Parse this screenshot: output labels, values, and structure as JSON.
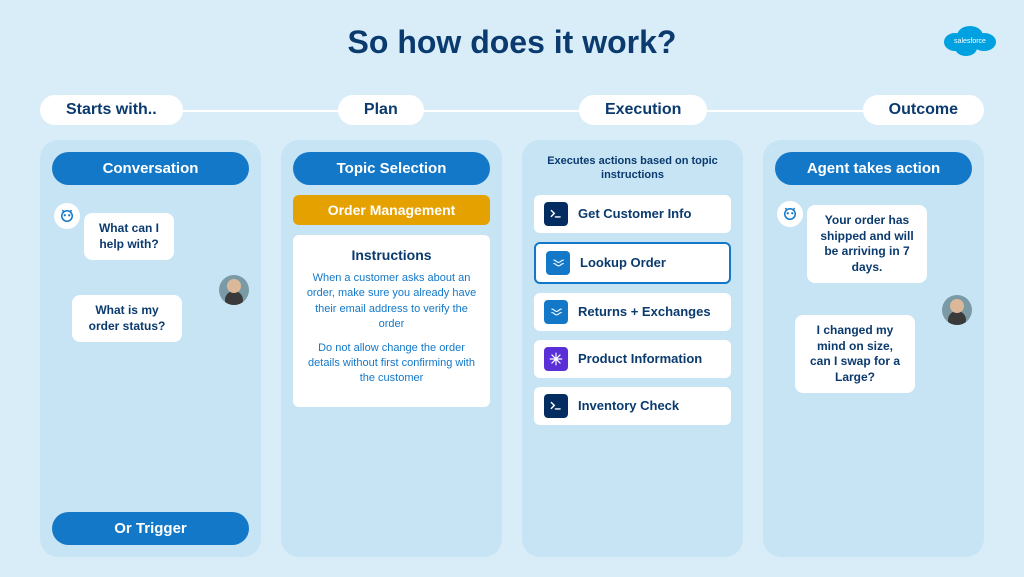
{
  "title": "So how does it work?",
  "logo_label": "salesforce",
  "colors": {
    "page_bg": "#d9edf9",
    "col_bg": "#c7e4f5",
    "primary": "#1478c8",
    "dark": "#0a3a6e",
    "amber": "#e5a100",
    "white": "#ffffff",
    "icon_terminal": "#032d60",
    "icon_flow": "#1478c8",
    "icon_star": "#5a2fd8"
  },
  "stages": [
    "Starts with..",
    "Plan",
    "Execution",
    "Outcome"
  ],
  "col1": {
    "header": "Conversation",
    "bot_msg": "What can I help with?",
    "user_msg": "What is my order status?",
    "footer": "Or Trigger"
  },
  "col2": {
    "header": "Topic Selection",
    "topic": "Order Management",
    "instructions_title": "Instructions",
    "instruction1": "When a customer asks about an order, make sure you already have their email address to verify the order",
    "instruction2": "Do not allow change the order details without first confirming with the customer"
  },
  "col3": {
    "header": "Executes actions based on topic instructions",
    "actions": [
      {
        "label": "Get Customer Info",
        "icon": "terminal",
        "highlighted": false
      },
      {
        "label": "Lookup Order",
        "icon": "flow",
        "highlighted": true
      },
      {
        "label": "Returns + Exchanges",
        "icon": "flow",
        "highlighted": false
      },
      {
        "label": "Product Information",
        "icon": "star",
        "highlighted": false
      },
      {
        "label": "Inventory Check",
        "icon": "terminal",
        "highlighted": false
      }
    ]
  },
  "col4": {
    "header": "Agent takes action",
    "bot_msg": "Your order has shipped and will be arriving in 7 days.",
    "user_msg": "I changed my mind on size, can I swap for a Large?"
  }
}
